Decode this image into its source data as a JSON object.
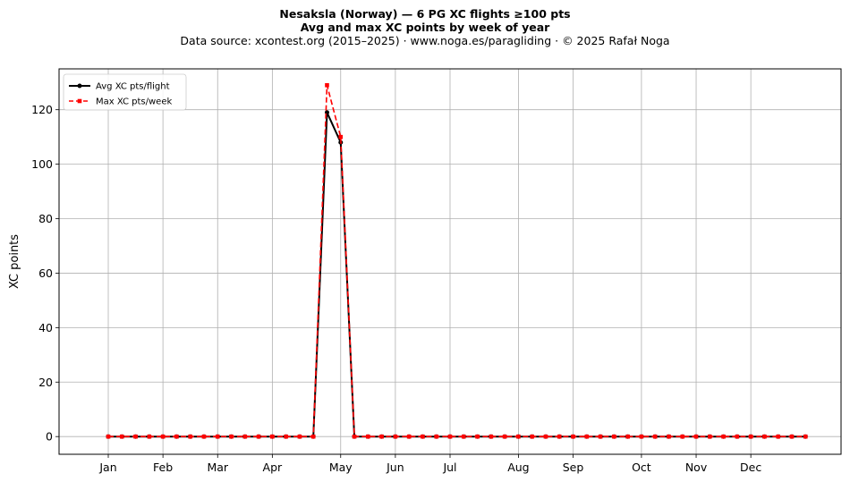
{
  "title_line1": "Nesaksla (Norway)  —  6 PG XC flights ≥100 pts",
  "title_line2": "Avg and max XC points by week of year",
  "subtitle": "Data source: xcontest.org (2015–2025)  ·  www.noga.es/paragliding  ·  © 2025 Rafał Noga",
  "chart_data": {
    "type": "line",
    "title": "Nesaksla (Norway)  —  6 PG XC flights ≥100 pts",
    "subtitle": "Avg and max XC points by week of year",
    "xlabel": "",
    "ylabel": "XC points",
    "ylim": [
      -6.5,
      135
    ],
    "yticks": [
      0,
      20,
      40,
      60,
      80,
      100,
      120
    ],
    "xlim": [
      -2.6,
      54.6
    ],
    "xticks": [
      {
        "week": 1,
        "label": "Jan"
      },
      {
        "week": 5,
        "label": "Feb"
      },
      {
        "week": 9,
        "label": "Mar"
      },
      {
        "week": 13,
        "label": "Apr"
      },
      {
        "week": 18,
        "label": "May"
      },
      {
        "week": 22,
        "label": "Jun"
      },
      {
        "week": 26,
        "label": "Jul"
      },
      {
        "week": 31,
        "label": "Aug"
      },
      {
        "week": 35,
        "label": "Sep"
      },
      {
        "week": 40,
        "label": "Oct"
      },
      {
        "week": 44,
        "label": "Nov"
      },
      {
        "week": 48,
        "label": "Dec"
      }
    ],
    "grid": true,
    "legend_position": "top-left",
    "x": [
      1,
      2,
      3,
      4,
      5,
      6,
      7,
      8,
      9,
      10,
      11,
      12,
      13,
      14,
      15,
      16,
      17,
      18,
      19,
      20,
      21,
      22,
      23,
      24,
      25,
      26,
      27,
      28,
      29,
      30,
      31,
      32,
      33,
      34,
      35,
      36,
      37,
      38,
      39,
      40,
      41,
      42,
      43,
      44,
      45,
      46,
      47,
      48,
      49,
      50,
      51,
      52
    ],
    "series": [
      {
        "name": "Avg XC pts/flight",
        "color": "#000000",
        "style": "solid",
        "marker": "circle",
        "values": [
          0,
          0,
          0,
          0,
          0,
          0,
          0,
          0,
          0,
          0,
          0,
          0,
          0,
          0,
          0,
          0,
          119,
          108,
          0,
          0,
          0,
          0,
          0,
          0,
          0,
          0,
          0,
          0,
          0,
          0,
          0,
          0,
          0,
          0,
          0,
          0,
          0,
          0,
          0,
          0,
          0,
          0,
          0,
          0,
          0,
          0,
          0,
          0,
          0,
          0,
          0,
          0
        ]
      },
      {
        "name": "Max XC pts/week",
        "color": "#ff0000",
        "style": "dashed",
        "marker": "square",
        "values": [
          0,
          0,
          0,
          0,
          0,
          0,
          0,
          0,
          0,
          0,
          0,
          0,
          0,
          0,
          0,
          0,
          129,
          110,
          0,
          0,
          0,
          0,
          0,
          0,
          0,
          0,
          0,
          0,
          0,
          0,
          0,
          0,
          0,
          0,
          0,
          0,
          0,
          0,
          0,
          0,
          0,
          0,
          0,
          0,
          0,
          0,
          0,
          0,
          0,
          0,
          0,
          0
        ]
      }
    ]
  }
}
